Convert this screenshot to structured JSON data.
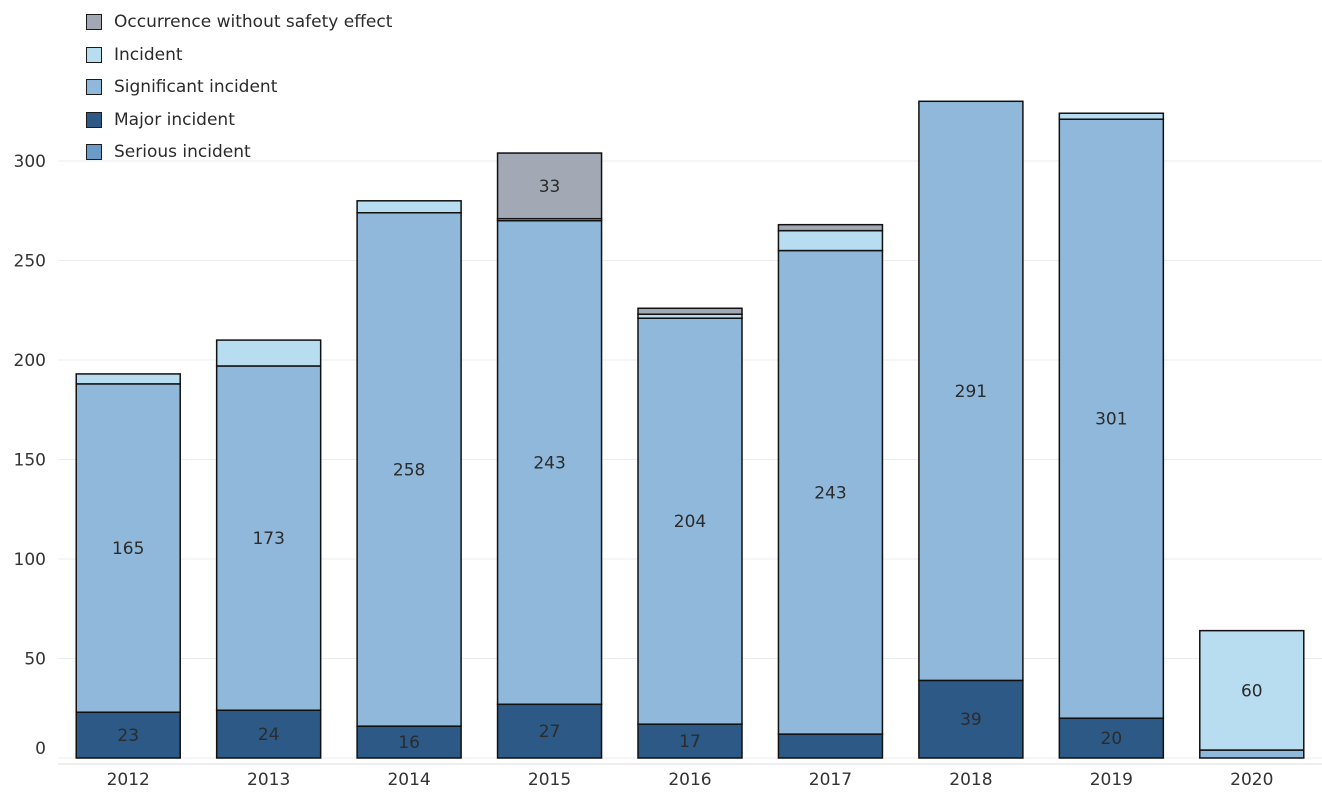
{
  "chart_data": {
    "type": "bar",
    "stacked": true,
    "categories": [
      "2012",
      "2013",
      "2014",
      "2015",
      "2016",
      "2017",
      "2018",
      "2019",
      "2020"
    ],
    "ylim": [
      0,
      330
    ],
    "yticks": [
      0,
      50,
      100,
      150,
      200,
      250,
      300
    ],
    "grid": true,
    "legend_position": "top-left",
    "series": [
      {
        "name": "Serious incident",
        "color": "#6a9bc9",
        "values": [
          0,
          0,
          0,
          0,
          0,
          0,
          0,
          0,
          0
        ]
      },
      {
        "name": "Major incident",
        "color": "#2c5985",
        "values": [
          23,
          24,
          16,
          27,
          17,
          12,
          39,
          20,
          0
        ]
      },
      {
        "name": "Significant incident",
        "color": "#8fb8db",
        "values": [
          165,
          173,
          258,
          243,
          204,
          243,
          291,
          301,
          4
        ]
      },
      {
        "name": "Incident",
        "color": "#b8dcf0",
        "values": [
          5,
          13,
          6,
          1,
          2,
          10,
          0,
          3,
          60
        ]
      },
      {
        "name": "Occurrence without safety effect",
        "color": "#a3a9b4",
        "values": [
          0,
          0,
          0,
          33,
          3,
          3,
          0,
          0,
          0
        ]
      }
    ],
    "data_labels": [
      {
        "category": "2012",
        "series": "Major incident",
        "text": "23"
      },
      {
        "category": "2012",
        "series": "Significant incident",
        "text": "165"
      },
      {
        "category": "2013",
        "series": "Major incident",
        "text": "24"
      },
      {
        "category": "2013",
        "series": "Significant incident",
        "text": "173"
      },
      {
        "category": "2014",
        "series": "Major incident",
        "text": "16"
      },
      {
        "category": "2014",
        "series": "Significant incident",
        "text": "258"
      },
      {
        "category": "2015",
        "series": "Major incident",
        "text": "27"
      },
      {
        "category": "2015",
        "series": "Significant incident",
        "text": "243"
      },
      {
        "category": "2015",
        "series": "Occurrence without safety effect",
        "text": "33"
      },
      {
        "category": "2016",
        "series": "Major incident",
        "text": "17"
      },
      {
        "category": "2016",
        "series": "Significant incident",
        "text": "204"
      },
      {
        "category": "2017",
        "series": "Significant incident",
        "text": "243"
      },
      {
        "category": "2018",
        "series": "Major incident",
        "text": "39"
      },
      {
        "category": "2018",
        "series": "Significant incident",
        "text": "291"
      },
      {
        "category": "2019",
        "series": "Major incident",
        "text": "20"
      },
      {
        "category": "2019",
        "series": "Significant incident",
        "text": "301"
      },
      {
        "category": "2020",
        "series": "Incident",
        "text": "60"
      }
    ]
  },
  "legend": {
    "items": [
      {
        "label": "Occurrence without safety effect",
        "color": "#a3a9b4"
      },
      {
        "label": "Incident",
        "color": "#b8dcf0"
      },
      {
        "label": "Significant incident",
        "color": "#8fb8db"
      },
      {
        "label": "Major incident",
        "color": "#2c5985"
      },
      {
        "label": "Serious incident",
        "color": "#6a9bc9"
      }
    ]
  }
}
